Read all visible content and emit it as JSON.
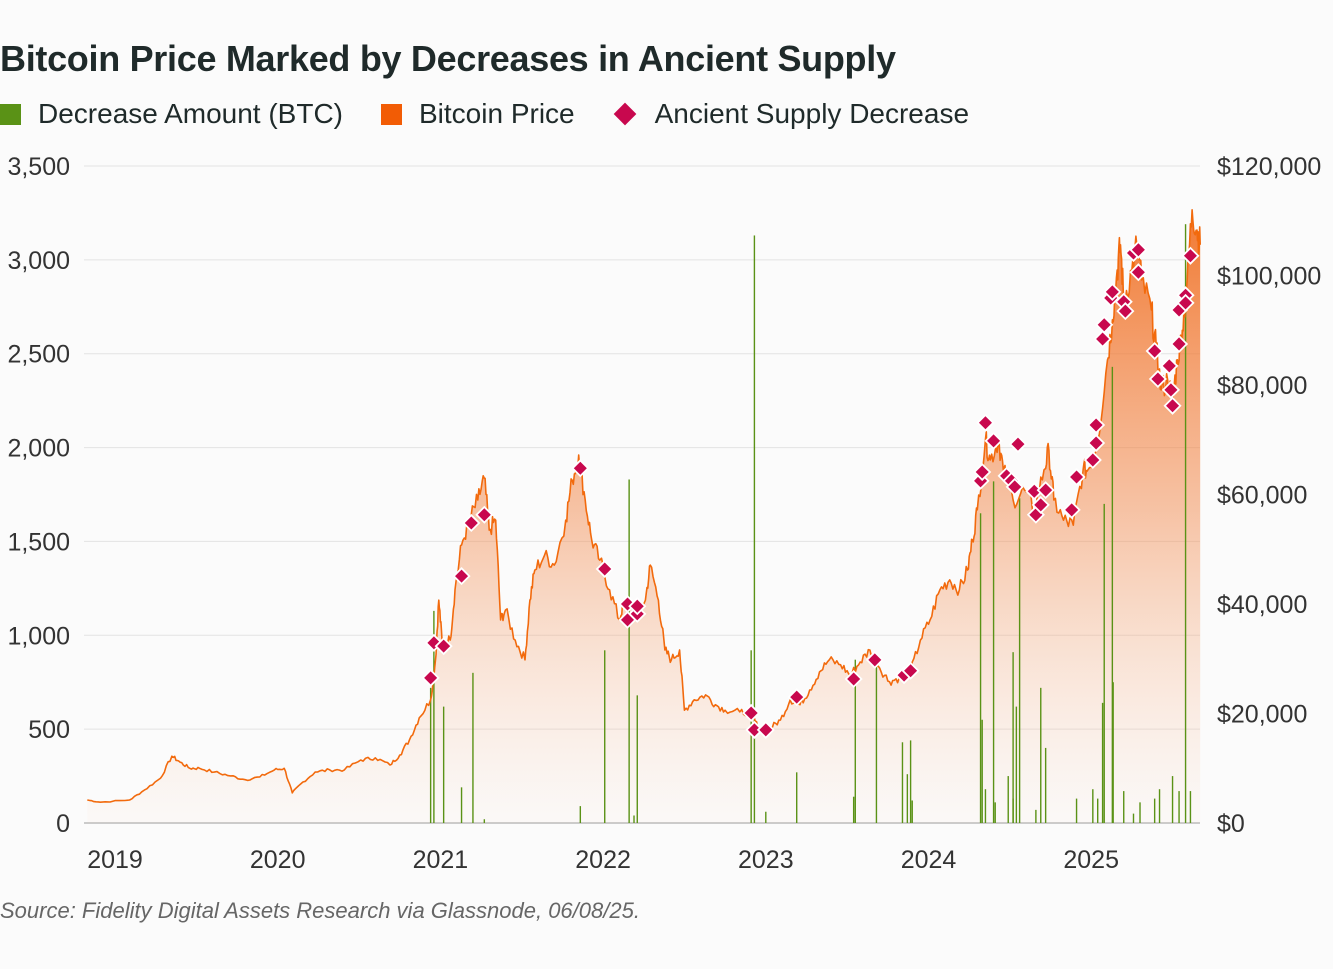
{
  "title": "Bitcoin Price Marked by Decreases in Ancient Supply",
  "legend": [
    {
      "label": "Decrease Amount (BTC)",
      "color": "#5a9216",
      "marker": "square"
    },
    {
      "label": "Bitcoin Price",
      "color": "#f25c05",
      "marker": "square"
    },
    {
      "label": "Ancient Supply Decrease",
      "color": "#c8084e",
      "marker": "diamond"
    }
  ],
  "source": "Source: Fidelity Digital Assets Research via Glassnode, 06/08/25.",
  "chart_data": {
    "type": "combo",
    "title": "Bitcoin Price Marked by Decreases in Ancient Supply",
    "x_unit": "year (decimal)",
    "xlim": [
      2018.83,
      2025.68
    ],
    "x_ticks": [
      "2019",
      "2020",
      "2021",
      "2022",
      "2023",
      "2024",
      "2025"
    ],
    "left_axis": {
      "ylim": [
        0,
        3500
      ],
      "ticks": [
        "0",
        "500",
        "1,000",
        "1,500",
        "2,000",
        "2,500",
        "3,000",
        "3,500"
      ]
    },
    "right_axis": {
      "ylim": [
        0,
        120000
      ],
      "ticks": [
        "$0",
        "$20,000",
        "$40,000",
        "$60,000",
        "$80,000",
        "$100,000",
        "$120,000"
      ]
    },
    "grid": true,
    "legend_position": "top-left",
    "series": [
      {
        "name": "Decrease Amount (BTC)",
        "type": "bar",
        "axis": "left",
        "color": "#5a9216",
        "points": [
          [
            2020.94,
            720
          ],
          [
            2020.96,
            1130
          ],
          [
            2021.02,
            620
          ],
          [
            2021.13,
            190
          ],
          [
            2021.2,
            800
          ],
          [
            2021.27,
            20
          ],
          [
            2021.86,
            90
          ],
          [
            2022.01,
            920
          ],
          [
            2022.16,
            1830
          ],
          [
            2022.19,
            40
          ],
          [
            2022.21,
            680
          ],
          [
            2022.91,
            920
          ],
          [
            2022.93,
            3130
          ],
          [
            2023.0,
            60
          ],
          [
            2023.19,
            270
          ],
          [
            2023.54,
            140
          ],
          [
            2023.55,
            870
          ],
          [
            2023.68,
            900
          ],
          [
            2023.84,
            430
          ],
          [
            2023.87,
            260
          ],
          [
            2023.89,
            440
          ],
          [
            2023.9,
            120
          ],
          [
            2024.32,
            1650
          ],
          [
            2024.33,
            550
          ],
          [
            2024.35,
            180
          ],
          [
            2024.4,
            1820
          ],
          [
            2024.41,
            110
          ],
          [
            2024.49,
            250
          ],
          [
            2024.52,
            130
          ],
          [
            2024.52,
            910
          ],
          [
            2024.54,
            620
          ],
          [
            2024.56,
            1730
          ],
          [
            2024.66,
            70
          ],
          [
            2024.69,
            720
          ],
          [
            2024.72,
            400
          ],
          [
            2024.91,
            130
          ],
          [
            2025.01,
            180
          ],
          [
            2025.04,
            130
          ],
          [
            2025.07,
            640
          ],
          [
            2025.08,
            1700
          ],
          [
            2025.13,
            2430
          ],
          [
            2025.135,
            750
          ],
          [
            2025.2,
            170
          ],
          [
            2025.26,
            50
          ],
          [
            2025.3,
            110
          ],
          [
            2025.39,
            130
          ],
          [
            2025.42,
            180
          ],
          [
            2025.5,
            250
          ],
          [
            2025.54,
            170
          ],
          [
            2025.58,
            3190
          ],
          [
            2025.61,
            170
          ]
        ]
      },
      {
        "name": "Bitcoin Price",
        "type": "area",
        "axis": "right",
        "color": "#f26a0d",
        "points": [
          [
            2018.83,
            4200
          ],
          [
            2018.91,
            3800
          ],
          [
            2019.09,
            4200
          ],
          [
            2019.18,
            6000
          ],
          [
            2019.28,
            8200
          ],
          [
            2019.35,
            12200
          ],
          [
            2019.4,
            11100
          ],
          [
            2019.46,
            10000
          ],
          [
            2019.52,
            10000
          ],
          [
            2019.61,
            9300
          ],
          [
            2019.71,
            8600
          ],
          [
            2019.8,
            7900
          ],
          [
            2019.89,
            8400
          ],
          [
            2019.98,
            9700
          ],
          [
            2020.04,
            10000
          ],
          [
            2020.09,
            5500
          ],
          [
            2020.14,
            7100
          ],
          [
            2020.23,
            9300
          ],
          [
            2020.32,
            9700
          ],
          [
            2020.41,
            9700
          ],
          [
            2020.51,
            11500
          ],
          [
            2020.6,
            11900
          ],
          [
            2020.69,
            10600
          ],
          [
            2020.75,
            12400
          ],
          [
            2020.81,
            15200
          ],
          [
            2020.87,
            19200
          ],
          [
            2020.94,
            22500
          ],
          [
            2020.97,
            29800
          ],
          [
            2020.99,
            40700
          ],
          [
            2021.01,
            33400
          ],
          [
            2021.06,
            33400
          ],
          [
            2021.09,
            42600
          ],
          [
            2021.13,
            50800
          ],
          [
            2021.18,
            55300
          ],
          [
            2021.23,
            59000
          ],
          [
            2021.27,
            63000
          ],
          [
            2021.3,
            53500
          ],
          [
            2021.34,
            55300
          ],
          [
            2021.37,
            37100
          ],
          [
            2021.4,
            38900
          ],
          [
            2021.46,
            33400
          ],
          [
            2021.52,
            29800
          ],
          [
            2021.55,
            40700
          ],
          [
            2021.58,
            46200
          ],
          [
            2021.64,
            48900
          ],
          [
            2021.7,
            47100
          ],
          [
            2021.77,
            55300
          ],
          [
            2021.81,
            62600
          ],
          [
            2021.85,
            67200
          ],
          [
            2021.89,
            59000
          ],
          [
            2021.93,
            51700
          ],
          [
            2021.98,
            48000
          ],
          [
            2022.04,
            42600
          ],
          [
            2022.1,
            37100
          ],
          [
            2022.13,
            40700
          ],
          [
            2022.2,
            38900
          ],
          [
            2022.26,
            40700
          ],
          [
            2022.29,
            47100
          ],
          [
            2022.34,
            40700
          ],
          [
            2022.38,
            31600
          ],
          [
            2022.42,
            29800
          ],
          [
            2022.47,
            31600
          ],
          [
            2022.5,
            20600
          ],
          [
            2022.56,
            22500
          ],
          [
            2022.63,
            23400
          ],
          [
            2022.69,
            21600
          ],
          [
            2022.75,
            20600
          ],
          [
            2022.84,
            20300
          ],
          [
            2022.91,
            20100
          ],
          [
            2022.96,
            17000
          ],
          [
            2023.03,
            17400
          ],
          [
            2023.09,
            18800
          ],
          [
            2023.15,
            22500
          ],
          [
            2023.21,
            21600
          ],
          [
            2023.27,
            24300
          ],
          [
            2023.33,
            27600
          ],
          [
            2023.39,
            29800
          ],
          [
            2023.46,
            28900
          ],
          [
            2023.52,
            27000
          ],
          [
            2023.58,
            29400
          ],
          [
            2023.64,
            31600
          ],
          [
            2023.7,
            28300
          ],
          [
            2023.76,
            25800
          ],
          [
            2023.82,
            26500
          ],
          [
            2023.89,
            27600
          ],
          [
            2023.95,
            33400
          ],
          [
            2024.01,
            37100
          ],
          [
            2024.07,
            42600
          ],
          [
            2024.13,
            44400
          ],
          [
            2024.19,
            42600
          ],
          [
            2024.24,
            46200
          ],
          [
            2024.27,
            51700
          ],
          [
            2024.3,
            57200
          ],
          [
            2024.35,
            70000
          ],
          [
            2024.38,
            66300
          ],
          [
            2024.43,
            70000
          ],
          [
            2024.46,
            64500
          ],
          [
            2024.52,
            59000
          ],
          [
            2024.59,
            60800
          ],
          [
            2024.65,
            57200
          ],
          [
            2024.71,
            64500
          ],
          [
            2024.74,
            68100
          ],
          [
            2024.77,
            59000
          ],
          [
            2024.83,
            55300
          ],
          [
            2024.89,
            54400
          ],
          [
            2024.95,
            64500
          ],
          [
            2024.98,
            64500
          ],
          [
            2025.04,
            70000
          ],
          [
            2025.1,
            84600
          ],
          [
            2025.13,
            91900
          ],
          [
            2025.16,
            101000
          ],
          [
            2025.18,
            105600
          ],
          [
            2025.2,
            95500
          ],
          [
            2025.25,
            101000
          ],
          [
            2025.28,
            105600
          ],
          [
            2025.31,
            99200
          ],
          [
            2025.37,
            93700
          ],
          [
            2025.4,
            86400
          ],
          [
            2025.43,
            79100
          ],
          [
            2025.47,
            80900
          ],
          [
            2025.5,
            77300
          ],
          [
            2025.53,
            84600
          ],
          [
            2025.56,
            90000
          ],
          [
            2025.59,
            99200
          ],
          [
            2025.62,
            112000
          ],
          [
            2025.65,
            108300
          ],
          [
            2025.67,
            105600
          ]
        ]
      },
      {
        "name": "Ancient Supply Decrease",
        "type": "scatter",
        "axis": "right",
        "color": "#c8084e",
        "points": [
          [
            2020.94,
            26500
          ],
          [
            2020.96,
            32900
          ],
          [
            2021.02,
            32300
          ],
          [
            2021.13,
            45100
          ],
          [
            2021.19,
            54800
          ],
          [
            2021.27,
            56300
          ],
          [
            2021.86,
            64800
          ],
          [
            2022.01,
            46400
          ],
          [
            2022.15,
            40000
          ],
          [
            2022.15,
            37100
          ],
          [
            2022.21,
            38200
          ],
          [
            2022.21,
            39600
          ],
          [
            2022.91,
            20100
          ],
          [
            2022.93,
            17000
          ],
          [
            2023.0,
            17000
          ],
          [
            2023.19,
            23000
          ],
          [
            2023.54,
            26300
          ],
          [
            2023.67,
            29800
          ],
          [
            2023.85,
            27000
          ],
          [
            2023.89,
            27800
          ],
          [
            2024.32,
            62500
          ],
          [
            2024.33,
            64100
          ],
          [
            2024.35,
            73100
          ],
          [
            2024.4,
            69800
          ],
          [
            2024.48,
            63400
          ],
          [
            2024.51,
            62500
          ],
          [
            2024.53,
            61400
          ],
          [
            2024.55,
            69200
          ],
          [
            2024.65,
            60600
          ],
          [
            2024.66,
            56300
          ],
          [
            2024.69,
            58100
          ],
          [
            2024.72,
            60800
          ],
          [
            2024.88,
            57200
          ],
          [
            2024.91,
            63200
          ],
          [
            2025.01,
            66300
          ],
          [
            2025.03,
            69400
          ],
          [
            2025.03,
            72700
          ],
          [
            2025.07,
            88400
          ],
          [
            2025.08,
            91000
          ],
          [
            2025.12,
            95900
          ],
          [
            2025.13,
            97000
          ],
          [
            2025.2,
            95200
          ],
          [
            2025.21,
            93500
          ],
          [
            2025.26,
            104100
          ],
          [
            2025.29,
            104700
          ],
          [
            2025.29,
            100600
          ],
          [
            2025.39,
            86200
          ],
          [
            2025.41,
            81100
          ],
          [
            2025.48,
            83500
          ],
          [
            2025.49,
            79100
          ],
          [
            2025.5,
            76200
          ],
          [
            2025.54,
            87500
          ],
          [
            2025.54,
            93700
          ],
          [
            2025.58,
            96400
          ],
          [
            2025.58,
            95000
          ],
          [
            2025.61,
            103600
          ]
        ]
      }
    ]
  }
}
